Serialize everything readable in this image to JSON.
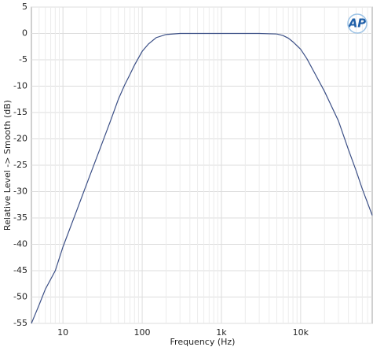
{
  "chart_data": {
    "type": "line",
    "logo": "AP",
    "xlabel": "Frequency (Hz)",
    "ylabel": "Relative Level -> Smooth (dB)",
    "xlog": true,
    "grid": true,
    "xlim": [
      4,
      80000
    ],
    "ylim": [
      -55,
      5
    ],
    "xticks": [
      10,
      100,
      {
        "value": 1000,
        "label": "1k"
      },
      {
        "value": 10000,
        "label": "10k"
      }
    ],
    "xminorticks": [
      5,
      6,
      7,
      8,
      9,
      20,
      30,
      40,
      50,
      60,
      70,
      80,
      90,
      200,
      300,
      400,
      500,
      600,
      700,
      800,
      900,
      2000,
      3000,
      4000,
      5000,
      6000,
      7000,
      8000,
      9000,
      20000,
      30000,
      40000,
      50000,
      60000,
      70000
    ],
    "yticks": [
      5,
      0,
      -5,
      -10,
      -15,
      -20,
      -25,
      -30,
      -35,
      -40,
      -45,
      -50,
      -55
    ],
    "x": [
      4,
      5,
      6,
      8,
      10,
      15,
      20,
      30,
      40,
      50,
      60,
      70,
      80,
      100,
      120,
      150,
      200,
      300,
      1000,
      3000,
      5000,
      6000,
      7000,
      8000,
      10000,
      12000,
      15000,
      20000,
      30000,
      40000,
      50000,
      60000,
      80000
    ],
    "series": [
      {
        "color": "#3b4f86",
        "values": [
          -55,
          -51.5,
          -48.5,
          -45,
          -40.5,
          -33.5,
          -28.5,
          -21.5,
          -16.5,
          -12.5,
          -9.8,
          -7.8,
          -6,
          -3.4,
          -2,
          -0.8,
          -0.2,
          0,
          0,
          0,
          -0.1,
          -0.4,
          -0.9,
          -1.6,
          -3,
          -4.8,
          -7.5,
          -11,
          -16.6,
          -22,
          -26,
          -29.5,
          -34.5
        ]
      }
    ]
  }
}
